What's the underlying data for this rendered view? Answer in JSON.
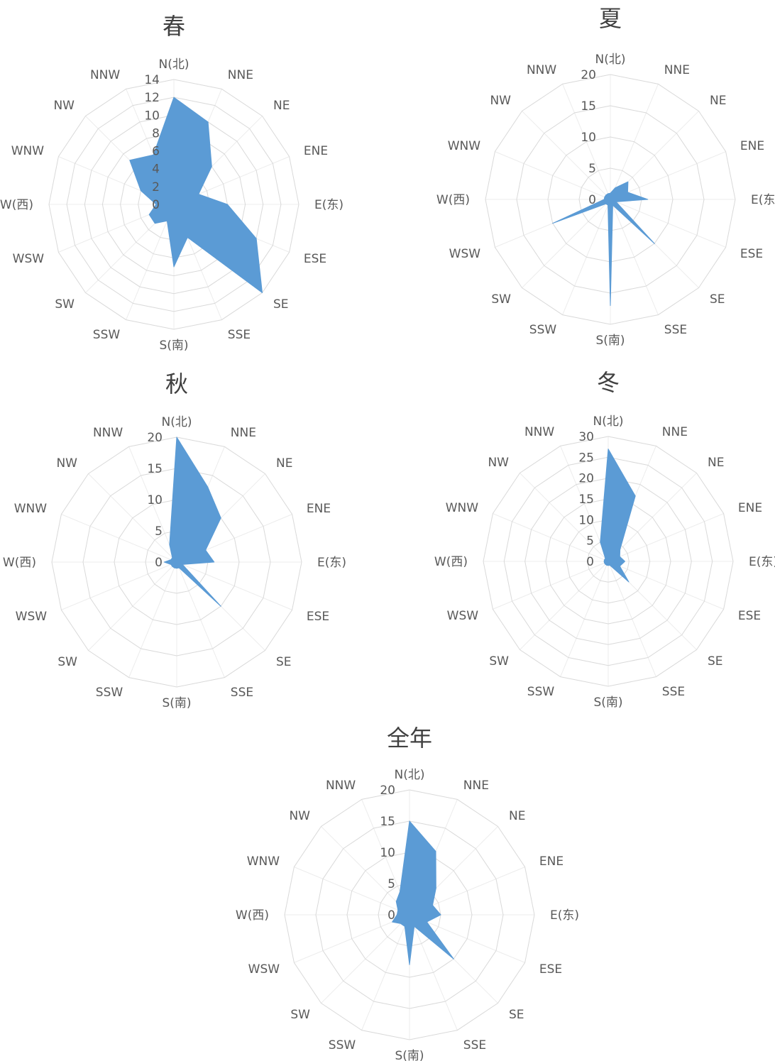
{
  "chart_data": [
    {
      "type": "radar",
      "title": "春",
      "categories": [
        "N(北)",
        "NNE",
        "NE",
        "ENE",
        "E(东)",
        "ESE",
        "SE",
        "SSE",
        "S(南)",
        "SSW",
        "SW",
        "WSW",
        "W(西)",
        "WNW",
        "NW",
        "NNW"
      ],
      "ticks": [
        "0",
        "2",
        "4",
        "6",
        "8",
        "10",
        "12",
        "14"
      ],
      "rmax": 14,
      "series": [
        {
          "values": [
            12,
            10,
            6,
            3,
            6,
            10,
            14,
            4,
            7,
            2,
            3,
            3,
            2,
            4,
            7,
            6
          ]
        }
      ],
      "grid": true,
      "color": "#5b9bd5"
    },
    {
      "type": "radar",
      "title": "夏",
      "categories": [
        "N(北)",
        "NNE",
        "NE",
        "ENE",
        "E(东)",
        "ESE",
        "SE",
        "SSE",
        "S(南)",
        "SSW",
        "SW",
        "WSW",
        "W(西)",
        "WNW",
        "NW",
        "NNW"
      ],
      "ticks": [
        "0",
        "5",
        "10",
        "15",
        "20"
      ],
      "rmax": 20,
      "series": [
        {
          "values": [
            1,
            2,
            4,
            3,
            6,
            1,
            10,
            1,
            17,
            1,
            1,
            10,
            1,
            1,
            1,
            1
          ]
        }
      ],
      "grid": true,
      "color": "#5b9bd5"
    },
    {
      "type": "radar",
      "title": "秋",
      "categories": [
        "N(北)",
        "NNE",
        "NE",
        "ENE",
        "E(东)",
        "ESE",
        "SE",
        "SSE",
        "S(南)",
        "SSW",
        "SW",
        "WSW",
        "W(西)",
        "WNW",
        "NW",
        "NNW"
      ],
      "ticks": [
        "0",
        "5",
        "10",
        "15",
        "20"
      ],
      "rmax": 20,
      "series": [
        {
          "values": [
            20,
            13,
            10,
            5,
            6,
            1,
            10,
            1,
            1,
            1,
            1,
            1,
            2,
            1,
            1,
            3
          ]
        }
      ],
      "grid": true,
      "color": "#5b9bd5"
    },
    {
      "type": "radar",
      "title": "冬",
      "categories": [
        "N(北)",
        "NNE",
        "NE",
        "ENE",
        "E(东)",
        "ESE",
        "SE",
        "SSE",
        "S(南)",
        "SSW",
        "SW",
        "WSW",
        "W(西)",
        "WNW",
        "NW",
        "NNW"
      ],
      "ticks": [
        "0",
        "5",
        "10",
        "15",
        "20",
        "25",
        "30"
      ],
      "rmax": 30,
      "series": [
        {
          "values": [
            27,
            17,
            4,
            3,
            4,
            3,
            7,
            1,
            1,
            1,
            1,
            1,
            1,
            1,
            1,
            5
          ]
        }
      ],
      "grid": true,
      "color": "#5b9bd5"
    },
    {
      "type": "radar",
      "title": "全年",
      "categories": [
        "N(北)",
        "NNE",
        "NE",
        "ENE",
        "E(东)",
        "ESE",
        "SE",
        "SSE",
        "S(南)",
        "SSW",
        "SW",
        "WSW",
        "W(西)",
        "WNW",
        "NW",
        "NNW"
      ],
      "ticks": [
        "0",
        "5",
        "10",
        "15",
        "20"
      ],
      "rmax": 20,
      "series": [
        {
          "values": [
            15,
            11,
            6,
            4,
            5,
            3,
            10,
            2,
            8,
            2,
            2,
            3,
            2,
            2,
            3,
            4
          ]
        }
      ],
      "grid": true,
      "color": "#5b9bd5"
    }
  ]
}
